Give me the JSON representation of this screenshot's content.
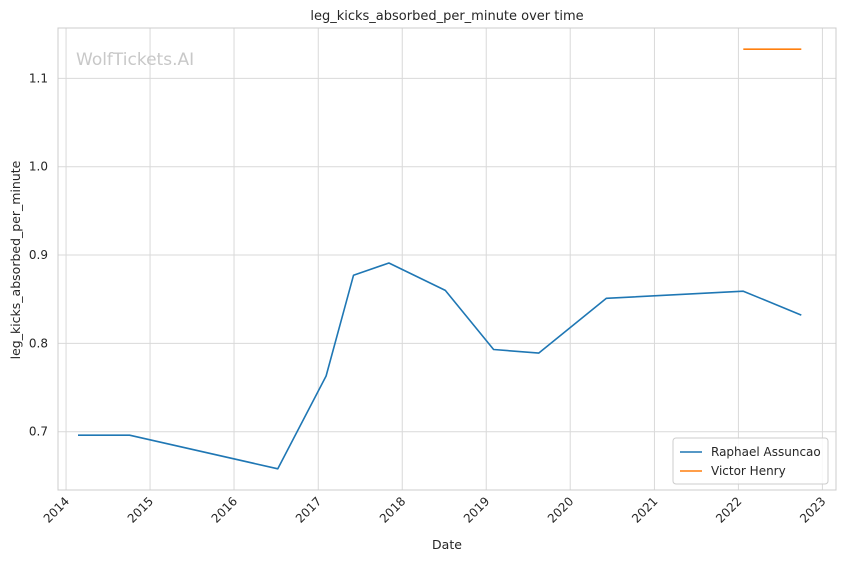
{
  "chart_data": {
    "type": "line",
    "title": "leg_kicks_absorbed_per_minute over time",
    "xlabel": "Date",
    "ylabel": "leg_kicks_absorbed_per_minute",
    "watermark": "WolfTickets.AI",
    "x_ticks": [
      "2014",
      "2015",
      "2016",
      "2017",
      "2018",
      "2019",
      "2020",
      "2021",
      "2022",
      "2023"
    ],
    "y_ticks": [
      "0.7",
      "0.8",
      "0.9",
      "1.0",
      "1.1"
    ],
    "xlim": [
      "2013-11-27",
      "2023-03-01"
    ],
    "ylim": [
      0.634,
      1.157
    ],
    "grid": true,
    "legend_position": "bottom-right",
    "series": [
      {
        "name": "Raphael Assuncao",
        "color": "#1f77b4",
        "points": [
          {
            "x": "2014-02-22",
            "y": 0.696
          },
          {
            "x": "2014-10-04",
            "y": 0.696
          },
          {
            "x": "2016-07-09",
            "y": 0.658
          },
          {
            "x": "2017-02-04",
            "y": 0.763
          },
          {
            "x": "2017-06-03",
            "y": 0.877
          },
          {
            "x": "2017-11-04",
            "y": 0.891
          },
          {
            "x": "2018-07-07",
            "y": 0.86
          },
          {
            "x": "2019-02-02",
            "y": 0.793
          },
          {
            "x": "2019-08-17",
            "y": 0.789
          },
          {
            "x": "2020-06-06",
            "y": 0.851
          },
          {
            "x": "2022-01-22",
            "y": 0.859
          },
          {
            "x": "2022-10-01",
            "y": 0.832
          }
        ]
      },
      {
        "name": "Victor Henry",
        "color": "#ff7f0e",
        "points": [
          {
            "x": "2022-01-22",
            "y": 1.133
          },
          {
            "x": "2022-10-01",
            "y": 1.133
          }
        ]
      }
    ]
  }
}
